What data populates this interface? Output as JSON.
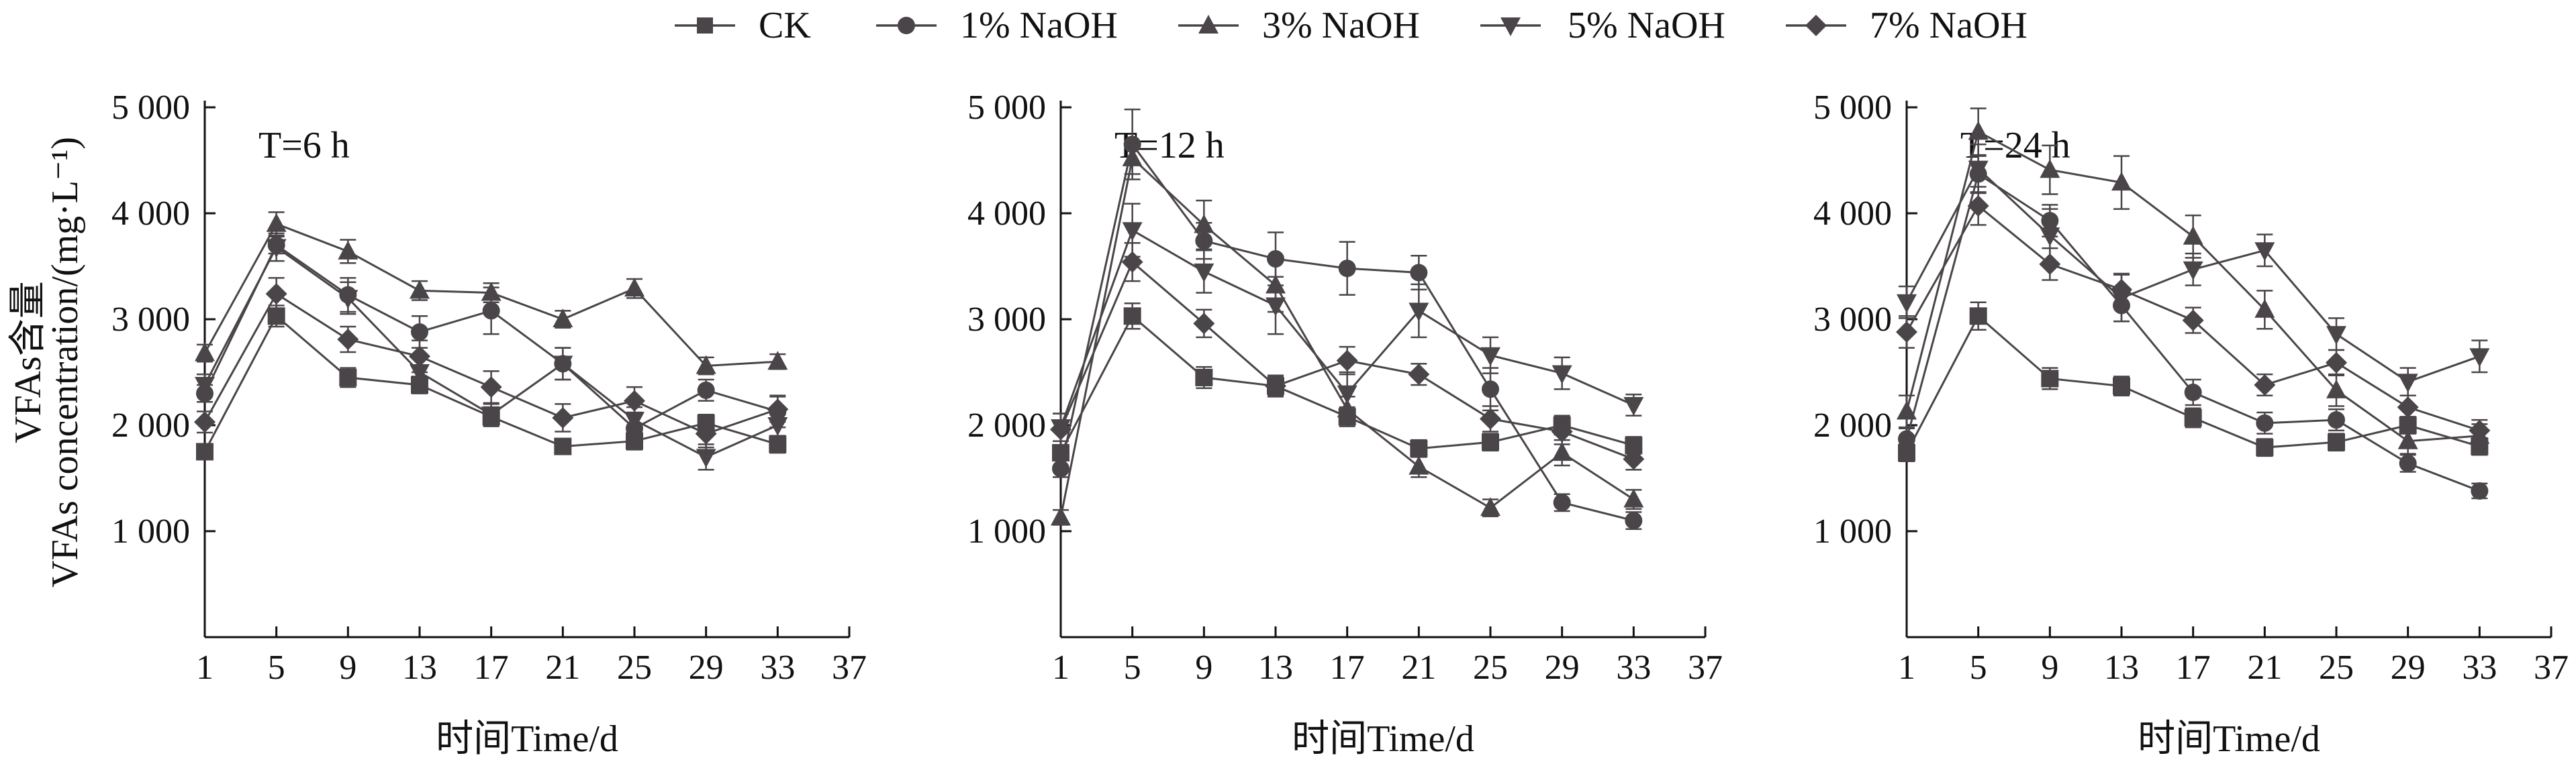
{
  "legend": [
    "CK",
    "1% NaOH",
    "3% NaOH",
    "5% NaOH",
    "7% NaOH"
  ],
  "y_axis_title": [
    "VFAs含量",
    "VFAs concentration/(mg·L⁻¹)"
  ],
  "colors": {
    "series": "#4a4548",
    "axis": "#111111",
    "text": "#111111"
  },
  "chart_data": [
    {
      "type": "line",
      "title": "T=6 h",
      "xlabel": "时间Time/d",
      "ylabel": "VFAs含量 VFAs concentration/(mg·L⁻¹)",
      "x": [
        1,
        5,
        9,
        13,
        17,
        21,
        25,
        29,
        33
      ],
      "xticks": [
        1,
        5,
        9,
        13,
        17,
        21,
        25,
        29,
        33,
        37
      ],
      "yticks": [
        1000,
        2000,
        3000,
        4000,
        5000
      ],
      "ytick_labels": [
        "1 000",
        "2 000",
        "3 000",
        "4 000",
        "5 000"
      ],
      "xlim": [
        1,
        37
      ],
      "ylim": [
        0,
        5000
      ],
      "series": [
        {
          "name": "CK",
          "marker": "square",
          "values": [
            1750,
            3030,
            2450,
            2380,
            2080,
            1800,
            1850,
            2020,
            1820
          ],
          "errors": [
            70,
            100,
            90,
            80,
            90,
            70,
            80,
            80,
            80
          ]
        },
        {
          "name": "1% NaOH",
          "marker": "circle",
          "values": [
            2300,
            3700,
            3230,
            2880,
            3080,
            2580,
            1970,
            2330,
            2130
          ],
          "errors": [
            80,
            80,
            160,
            150,
            220,
            150,
            150,
            100,
            150
          ]
        },
        {
          "name": "3% NaOH",
          "marker": "triangle-up",
          "values": [
            2680,
            3900,
            3640,
            3270,
            3250,
            3000,
            3290,
            2560,
            2600
          ],
          "errors": [
            80,
            110,
            110,
            90,
            90,
            80,
            90,
            80,
            70
          ]
        },
        {
          "name": "5% NaOH",
          "marker": "triangle-down",
          "values": [
            2380,
            3680,
            3200,
            2500,
            2100,
            2580,
            2050,
            1700,
            2000
          ],
          "errors": [
            100,
            130,
            150,
            150,
            100,
            150,
            120,
            120,
            100
          ]
        },
        {
          "name": "7% NaOH",
          "marker": "diamond",
          "values": [
            2030,
            3240,
            2810,
            2650,
            2360,
            2070,
            2230,
            1920,
            2150
          ],
          "errors": [
            100,
            150,
            120,
            150,
            150,
            130,
            130,
            130,
            120
          ]
        }
      ]
    },
    {
      "type": "line",
      "title": "T=12 h",
      "xlabel": "时间Time/d",
      "ylabel": "",
      "x": [
        1,
        5,
        9,
        13,
        17,
        21,
        25,
        29,
        33
      ],
      "xticks": [
        1,
        5,
        9,
        13,
        17,
        21,
        25,
        29,
        33,
        37
      ],
      "yticks": [
        1000,
        2000,
        3000,
        4000,
        5000
      ],
      "ytick_labels": [
        "1 000",
        "2 000",
        "3 000",
        "4 000",
        "5 000"
      ],
      "xlim": [
        1,
        37
      ],
      "ylim": [
        0,
        5000
      ],
      "series": [
        {
          "name": "CK",
          "marker": "square",
          "values": [
            1740,
            3030,
            2450,
            2370,
            2080,
            1780,
            1840,
            2000,
            1810
          ],
          "errors": [
            70,
            120,
            100,
            90,
            90,
            80,
            80,
            90,
            80
          ]
        },
        {
          "name": "1% NaOH",
          "marker": "circle",
          "values": [
            1590,
            4650,
            3740,
            3570,
            3480,
            3440,
            2340,
            1270,
            1100
          ],
          "errors": [
            80,
            330,
            170,
            250,
            250,
            160,
            200,
            80,
            80
          ]
        },
        {
          "name": "3% NaOH",
          "marker": "triangle-up",
          "values": [
            1130,
            4520,
            3890,
            3320,
            2150,
            1610,
            1220,
            1740,
            1300
          ],
          "errors": [
            70,
            150,
            230,
            250,
            120,
            100,
            80,
            120,
            90
          ]
        },
        {
          "name": "5% NaOH",
          "marker": "triangle-down",
          "values": [
            1980,
            3840,
            3450,
            3130,
            2300,
            3080,
            2660,
            2490,
            2190
          ],
          "errors": [
            130,
            250,
            200,
            270,
            200,
            250,
            170,
            150,
            100
          ]
        },
        {
          "name": "7% NaOH",
          "marker": "diamond",
          "values": [
            1960,
            3540,
            2960,
            2370,
            2610,
            2480,
            2060,
            1940,
            1680
          ],
          "errors": [
            150,
            180,
            130,
            100,
            130,
            100,
            120,
            120,
            100
          ]
        }
      ]
    },
    {
      "type": "line",
      "title": "T=24 h",
      "xlabel": "时间Time/d",
      "ylabel": "",
      "x": [
        1,
        5,
        9,
        13,
        17,
        21,
        25,
        29,
        33
      ],
      "xticks": [
        1,
        5,
        9,
        13,
        17,
        21,
        25,
        29,
        33,
        37
      ],
      "yticks": [
        1000,
        2000,
        3000,
        4000,
        5000
      ],
      "ytick_labels": [
        "1 000",
        "2 000",
        "3 000",
        "4 000",
        "5 000"
      ],
      "xlim": [
        1,
        37
      ],
      "ylim": [
        0,
        5000
      ],
      "series": [
        {
          "name": "CK",
          "marker": "square",
          "values": [
            1740,
            3030,
            2440,
            2370,
            2070,
            1790,
            1840,
            2000,
            1800
          ],
          "errors": [
            80,
            130,
            100,
            90,
            90,
            80,
            80,
            80,
            80
          ]
        },
        {
          "name": "1% NaOH",
          "marker": "circle",
          "values": [
            1870,
            4370,
            3930,
            3130,
            2310,
            2020,
            2050,
            1640,
            1380
          ],
          "errors": [
            100,
            170,
            150,
            150,
            120,
            100,
            100,
            80,
            70
          ]
        },
        {
          "name": "3% NaOH",
          "marker": "triangle-up",
          "values": [
            2130,
            4770,
            4410,
            4290,
            3780,
            3090,
            2330,
            1850,
            1900
          ],
          "errors": [
            150,
            220,
            230,
            250,
            200,
            180,
            150,
            120,
            110
          ]
        },
        {
          "name": "5% NaOH",
          "marker": "triangle-down",
          "values": [
            3160,
            4420,
            3790,
            3200,
            3470,
            3650,
            2860,
            2410,
            2650
          ],
          "errors": [
            150,
            230,
            250,
            220,
            150,
            150,
            150,
            130,
            150
          ]
        },
        {
          "name": "7% NaOH",
          "marker": "diamond",
          "values": [
            2880,
            4070,
            3520,
            3280,
            2990,
            2380,
            2590,
            2170,
            1950
          ],
          "errors": [
            150,
            180,
            150,
            150,
            120,
            100,
            120,
            110,
            100
          ]
        }
      ]
    }
  ]
}
